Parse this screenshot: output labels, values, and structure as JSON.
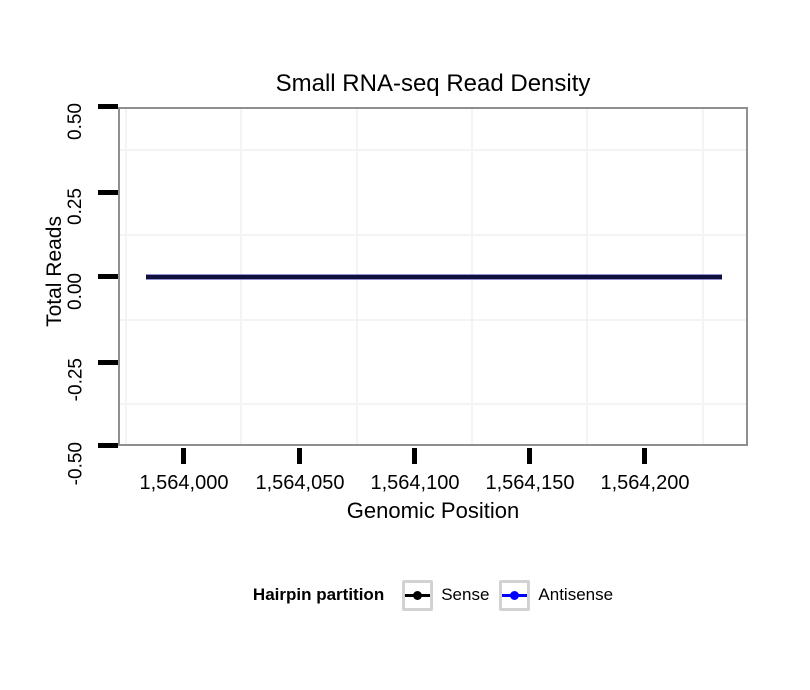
{
  "chart_data": {
    "type": "line",
    "title": "Small RNA-seq Read Density",
    "xlabel": "Genomic Position",
    "ylabel": "Total Reads",
    "x_tick_labels": [
      "1,564,000",
      "1,564,050",
      "1,564,100",
      "1,564,150",
      "1,564,200"
    ],
    "x_tick_values": [
      1564000,
      1564050,
      1564100,
      1564150,
      1564200
    ],
    "y_tick_labels": [
      "0.50",
      "0.25",
      "0.00",
      "-0.25",
      "-0.50"
    ],
    "y_tick_values": [
      0.5,
      0.25,
      0.0,
      -0.25,
      -0.5
    ],
    "xlim": [
      1563972,
      1564245
    ],
    "ylim": [
      -0.5,
      0.5
    ],
    "grid": {
      "style": "minor-gridlines-only",
      "color": "#f4f4f4"
    },
    "series": [
      {
        "name": "Sense",
        "color": "#000000",
        "x_start": 1563984,
        "x_end": 1564233,
        "y_constant": 0
      },
      {
        "name": "Antisense",
        "color": "#0000ff",
        "x_start": 1563984,
        "x_end": 1564233,
        "y_constant": 0
      }
    ],
    "legend": {
      "title": "Hairpin partition",
      "position": "bottom",
      "entries": [
        {
          "label": "Sense",
          "color": "#000000"
        },
        {
          "label": "Antisense",
          "color": "#0000ff"
        }
      ]
    },
    "colors": {
      "panel_border": "#8f8f8f",
      "axis_tick": "#000000",
      "overlapping_line_core": "#10103c",
      "legend_key_border": "#d2d2d2",
      "background": "#ffffff"
    }
  }
}
